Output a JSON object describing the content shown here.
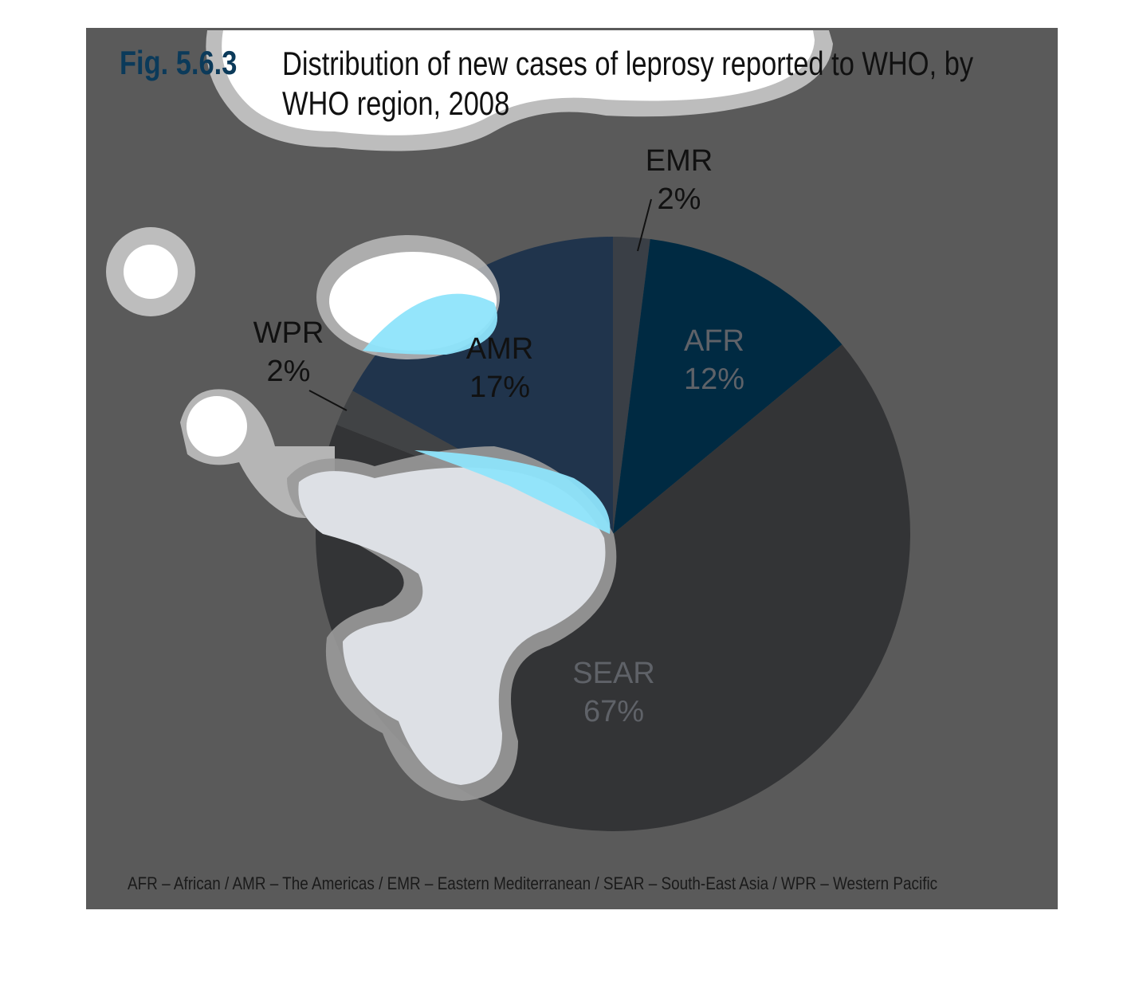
{
  "figure": {
    "number": "Fig. 5.6.3",
    "title": "Distribution of new cases of leprosy reported to WHO, by WHO region, 2008",
    "footnote": "AFR – African / AMR – The Americas / EMR – Eastern Mediterranean / SEAR – South-East Asia / WPR – Western Pacific"
  },
  "colors": {
    "background": "#5a5a5a",
    "accent_blue": "#2bb5e8",
    "highlight_light_blue": "#8ee4fb",
    "blob_white": "#ffffff",
    "blob_pale": "#dde0e5"
  },
  "chart_data": {
    "type": "pie",
    "title": "Distribution of new cases of leprosy reported to WHO, by WHO region, 2008",
    "slices": [
      {
        "name": "EMR",
        "value": 2,
        "label": "2%",
        "color": "#3a3f46"
      },
      {
        "name": "AFR",
        "value": 12,
        "label": "12%",
        "color": "#002a42"
      },
      {
        "name": "SEAR",
        "value": 67,
        "label": "67%",
        "color": "#333436"
      },
      {
        "name": "WPR",
        "value": 2,
        "label": "2%",
        "color": "#414345"
      },
      {
        "name": "AMR",
        "value": 17,
        "label": "17%",
        "color": "#20344c"
      }
    ],
    "legend": "none"
  }
}
